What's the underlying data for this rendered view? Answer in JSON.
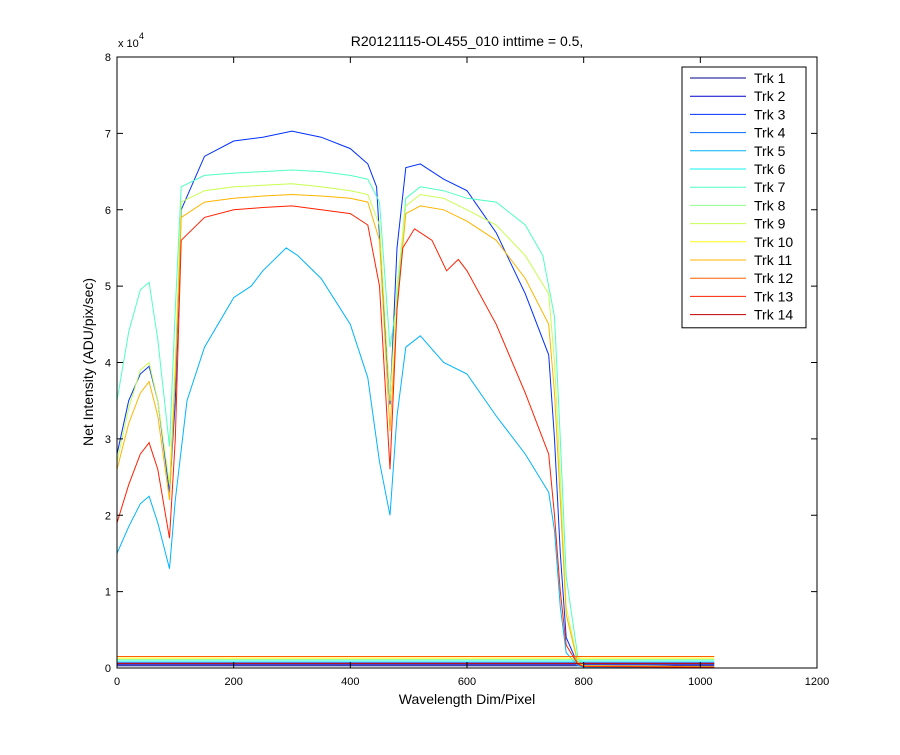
{
  "chart_data": {
    "type": "line",
    "title": "R20121115-OL455_010 inttime = 0.5,",
    "xlabel": "Wavelength Dim/Pixel",
    "ylabel": "Net Intensity (ADU/pix/sec)",
    "y_multiplier_label": "x 10",
    "y_multiplier_exponent": "4",
    "xlim": [
      0,
      1200
    ],
    "ylim": [
      0,
      80000
    ],
    "x_ticks": [
      0,
      200,
      400,
      600,
      800,
      1000,
      1200
    ],
    "x_tick_labels": [
      "0",
      "200",
      "400",
      "600",
      "800",
      "1000",
      "1200"
    ],
    "y_ticks": [
      0,
      10000,
      20000,
      30000,
      40000,
      50000,
      60000,
      70000,
      80000
    ],
    "y_tick_labels": [
      "0",
      "1",
      "2",
      "3",
      "4",
      "5",
      "6",
      "7",
      "8"
    ],
    "grid": false,
    "legend_position": "top-right",
    "series": [
      {
        "name": "Trk 1",
        "color": "#00008f",
        "x": [
          0,
          1024
        ],
        "y": [
          300,
          300
        ]
      },
      {
        "name": "Trk 2",
        "color": "#0000c8",
        "x": [
          0,
          1024
        ],
        "y": [
          500,
          500
        ]
      },
      {
        "name": "Trk 3",
        "color": "#0030ff",
        "x": [
          0,
          20,
          40,
          55,
          70,
          90,
          100,
          110,
          150,
          200,
          250,
          300,
          350,
          400,
          430,
          445,
          455,
          468,
          480,
          495,
          520,
          560,
          600,
          650,
          700,
          740,
          750,
          760,
          770,
          790,
          800,
          1024
        ],
        "y": [
          28000,
          35000,
          38500,
          39500,
          35000,
          23000,
          35000,
          60000,
          67000,
          69000,
          69500,
          70300,
          69500,
          68000,
          66000,
          63000,
          50000,
          34500,
          55000,
          65500,
          66000,
          64000,
          62500,
          57000,
          49000,
          41000,
          30000,
          15000,
          4000,
          500,
          200,
          100
        ]
      },
      {
        "name": "Trk 4",
        "color": "#0068ff",
        "x": [
          0,
          1024
        ],
        "y": [
          700,
          700
        ]
      },
      {
        "name": "Trk 5",
        "color": "#00b4ff",
        "x": [
          0,
          20,
          40,
          55,
          70,
          90,
          100,
          120,
          150,
          200,
          230,
          250,
          290,
          310,
          350,
          400,
          430,
          450,
          468,
          480,
          495,
          520,
          560,
          600,
          650,
          700,
          740,
          750,
          760,
          770,
          790,
          800,
          1024
        ],
        "y": [
          15000,
          18500,
          21500,
          22500,
          19000,
          13000,
          22000,
          35000,
          42000,
          48500,
          50000,
          52000,
          55000,
          54000,
          51000,
          45000,
          38000,
          27000,
          20000,
          33000,
          42000,
          43500,
          40000,
          38500,
          33000,
          28000,
          23000,
          18000,
          8000,
          2000,
          300,
          150,
          100
        ]
      },
      {
        "name": "Trk 6",
        "color": "#10f0f0",
        "x": [
          0,
          1024
        ],
        "y": [
          900,
          900
        ]
      },
      {
        "name": "Trk 7",
        "color": "#50ffc0",
        "x": [
          0,
          20,
          40,
          55,
          70,
          90,
          100,
          110,
          150,
          200,
          250,
          300,
          350,
          400,
          430,
          450,
          468,
          480,
          495,
          520,
          560,
          600,
          650,
          700,
          730,
          750,
          760,
          770,
          790,
          800,
          1024
        ],
        "y": [
          35000,
          44000,
          49500,
          50500,
          43000,
          29000,
          47000,
          63000,
          64500,
          64800,
          65000,
          65200,
          65000,
          64500,
          64000,
          61000,
          42000,
          48000,
          61500,
          63000,
          62500,
          61500,
          61000,
          58000,
          54000,
          46000,
          30000,
          12000,
          1500,
          300,
          150
        ]
      },
      {
        "name": "Trk 8",
        "color": "#90ff90",
        "x": [
          0,
          1024
        ],
        "y": [
          1100,
          1100
        ]
      },
      {
        "name": "Trk 9",
        "color": "#c8ff50",
        "x": [
          0,
          20,
          40,
          55,
          70,
          90,
          100,
          110,
          150,
          200,
          250,
          300,
          350,
          400,
          430,
          450,
          468,
          480,
          495,
          520,
          560,
          600,
          650,
          700,
          740,
          750,
          760,
          770,
          790,
          800,
          1024
        ],
        "y": [
          27000,
          34000,
          39000,
          40000,
          35000,
          24000,
          40000,
          61000,
          62500,
          63000,
          63200,
          63400,
          63000,
          62500,
          62000,
          58000,
          35000,
          50000,
          60500,
          62000,
          61500,
          60000,
          58000,
          54000,
          49000,
          40000,
          25000,
          8000,
          800,
          300,
          150
        ]
      },
      {
        "name": "Trk 10",
        "color": "#ffff10",
        "x": [
          0,
          1024
        ],
        "y": [
          1300,
          1300
        ]
      },
      {
        "name": "Trk 11",
        "color": "#ffb400",
        "x": [
          0,
          20,
          40,
          55,
          70,
          90,
          100,
          110,
          150,
          200,
          250,
          300,
          350,
          400,
          430,
          450,
          468,
          480,
          495,
          520,
          560,
          600,
          650,
          700,
          740,
          750,
          760,
          770,
          790,
          800,
          1024
        ],
        "y": [
          26000,
          32000,
          36000,
          37500,
          33000,
          22000,
          38000,
          59000,
          61000,
          61500,
          61800,
          62000,
          61800,
          61500,
          61000,
          56000,
          31000,
          47000,
          59500,
          60500,
          60000,
          58500,
          56000,
          51000,
          45000,
          36000,
          22000,
          7000,
          700,
          300,
          150
        ]
      },
      {
        "name": "Trk 12",
        "color": "#ff6000",
        "x": [
          0,
          1024
        ],
        "y": [
          1500,
          1500
        ]
      },
      {
        "name": "Trk 13",
        "color": "#ff2000",
        "x": [
          0,
          20,
          40,
          55,
          70,
          90,
          100,
          110,
          150,
          200,
          250,
          300,
          350,
          400,
          430,
          450,
          468,
          480,
          490,
          510,
          540,
          565,
          585,
          600,
          650,
          700,
          740,
          750,
          760,
          770,
          790,
          800,
          1024
        ],
        "y": [
          19000,
          24000,
          28000,
          29500,
          26000,
          17000,
          30000,
          56000,
          59000,
          60000,
          60300,
          60500,
          60000,
          59500,
          58000,
          50000,
          26000,
          47000,
          55000,
          57500,
          56000,
          52000,
          53500,
          52000,
          45000,
          36000,
          28000,
          20000,
          10000,
          3000,
          500,
          200,
          100
        ]
      },
      {
        "name": "Trk 14",
        "color": "#c00000",
        "x": [
          0,
          1024
        ],
        "y": [
          600,
          600
        ]
      }
    ]
  }
}
